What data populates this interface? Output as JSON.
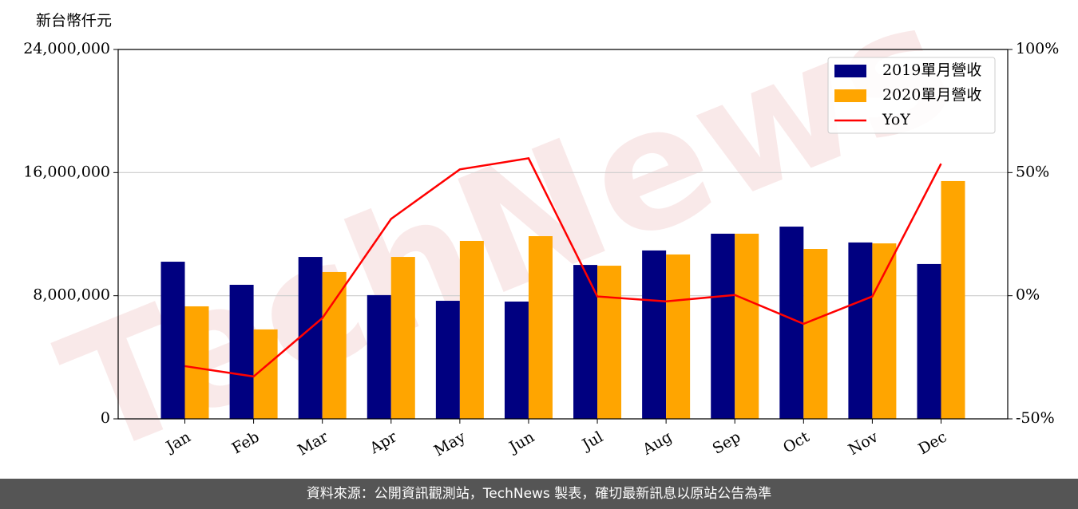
{
  "chart_data": {
    "type": "bar",
    "y_label": "新台幣仟元",
    "watermark": "TechNews",
    "categories": [
      "Jan",
      "Feb",
      "Mar",
      "Apr",
      "May",
      "Jun",
      "Jul",
      "Aug",
      "Sep",
      "Oct",
      "Nov",
      "Dec"
    ],
    "series": [
      {
        "name": "2019單月營收",
        "type": "bar",
        "color": "#000080",
        "values": [
          10210000,
          8710000,
          10520000,
          8040000,
          7670000,
          7620000,
          10000000,
          10940000,
          12030000,
          12490000,
          11460000,
          10060000
        ]
      },
      {
        "name": "2020單月營收",
        "type": "bar",
        "color": "#ffa500",
        "values": [
          7310000,
          5810000,
          9540000,
          10520000,
          11560000,
          11870000,
          9950000,
          10680000,
          12030000,
          11040000,
          11400000,
          15450000
        ]
      },
      {
        "name": "YoY",
        "type": "line",
        "axis": "y2",
        "color": "#ff0000",
        "values": [
          -28.6,
          -32.8,
          -9.1,
          31.2,
          51.3,
          55.8,
          -0.3,
          -2.3,
          0.3,
          -11.4,
          -0.3,
          53.6
        ]
      }
    ],
    "ylim": [
      0,
      24000000
    ],
    "yticks": [
      0,
      {
        "value": 8000000,
        "label": "8,000,000"
      },
      {
        "value": 16000000,
        "label": "16,000,000"
      },
      {
        "value": 24000000,
        "label": "24,000,000"
      }
    ],
    "y2lim": [
      -50,
      100
    ],
    "y2ticks": [
      {
        "value": -50,
        "label": "-50%"
      },
      {
        "value": 0,
        "label": "0%"
      },
      {
        "value": 50,
        "label": "50%"
      },
      {
        "value": 100,
        "label": "100%"
      }
    ],
    "grid": true,
    "legend": "upper right"
  },
  "footer": "資料來源：公開資訊觀測站，TechNews 製表，確切最新訊息以原站公告為準"
}
